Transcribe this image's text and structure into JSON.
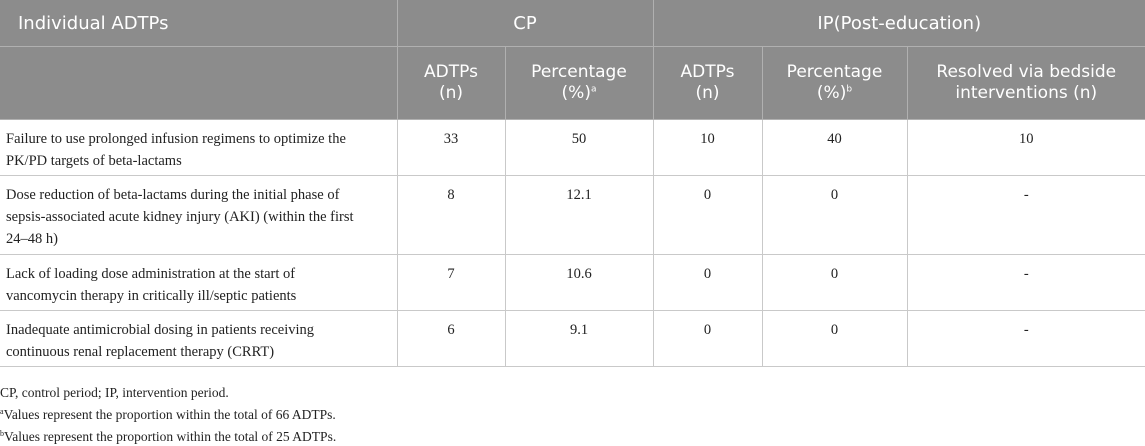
{
  "header": {
    "col1": "Individual ADTPs",
    "group_cp": "CP",
    "group_ip": "IP(Post-education)",
    "sub": {
      "cp_adtps_line1": "ADTPs",
      "cp_adtps_line2": "(n)",
      "cp_pct_line1": "Percentage",
      "cp_pct_line2": "(%)",
      "cp_pct_sup": "a",
      "ip_adtps_line1": "ADTPs",
      "ip_adtps_line2": "(n)",
      "ip_pct_line1": "Percentage",
      "ip_pct_line2": "(%)",
      "ip_pct_sup": "b",
      "resolved_line1": "Resolved via bedside",
      "resolved_line2": "interventions (n)"
    }
  },
  "rows": [
    {
      "label_lines": [
        "Failure to use prolonged infusion regimens to optimize the",
        "PK/PD targets of beta-lactams"
      ],
      "cp_n": "33",
      "cp_pct": "50",
      "ip_n": "10",
      "ip_pct": "40",
      "resolved": "10"
    },
    {
      "label_lines": [
        "Dose reduction of beta-lactams during the initial phase of",
        "sepsis-associated acute kidney injury (AKI) (within the first",
        "24–48 h)"
      ],
      "cp_n": "8",
      "cp_pct": "12.1",
      "ip_n": "0",
      "ip_pct": "0",
      "resolved": "-"
    },
    {
      "label_lines": [
        "Lack of loading dose administration at the start of",
        "vancomycin therapy in critically ill/septic patients"
      ],
      "cp_n": "7",
      "cp_pct": "10.6",
      "ip_n": "0",
      "ip_pct": "0",
      "resolved": "-"
    },
    {
      "label_lines": [
        "Inadequate antimicrobial dosing in patients receiving",
        "continuous renal replacement therapy (CRRT)"
      ],
      "cp_n": "6",
      "cp_pct": "9.1",
      "ip_n": "0",
      "ip_pct": "0",
      "resolved": "-"
    }
  ],
  "notes": {
    "abbrev": "CP, control period; IP, intervention period.",
    "note_a_sup": "a",
    "note_a": "Values represent the proportion within the total of 66 ADTPs.",
    "note_b_sup": "b",
    "note_b": "Values represent the proportion within the total of 25 ADTPs."
  }
}
